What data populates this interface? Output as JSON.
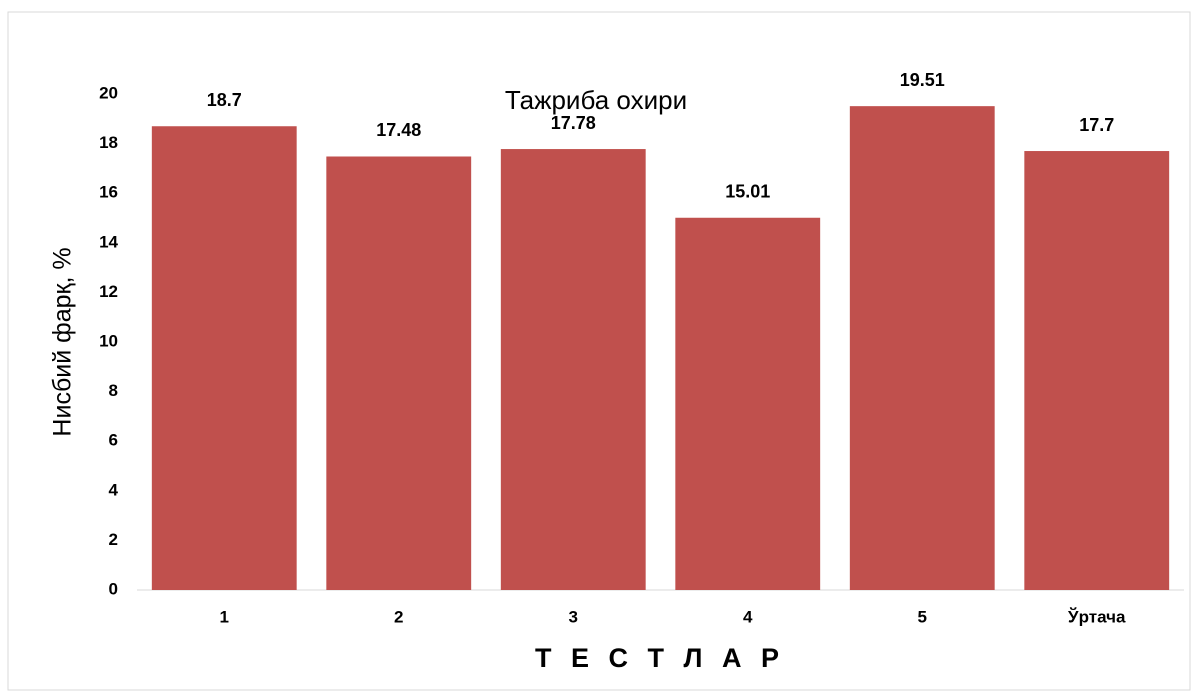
{
  "chart_data": {
    "type": "bar",
    "title": "Тажриба охири",
    "categories": [
      "1",
      "2",
      "3",
      "4",
      "5",
      "Ўртача"
    ],
    "values": [
      18.7,
      17.48,
      17.78,
      15.01,
      19.51,
      17.7
    ],
    "color": "#c0504d",
    "ylabel": "Нисбий фарқ, %",
    "xlabel": "Т Е С Т Л А Р",
    "ylim": [
      0,
      20
    ],
    "yticks": [
      0,
      2,
      4,
      6,
      8,
      10,
      12,
      14,
      16,
      18,
      20
    ],
    "grid": false
  }
}
